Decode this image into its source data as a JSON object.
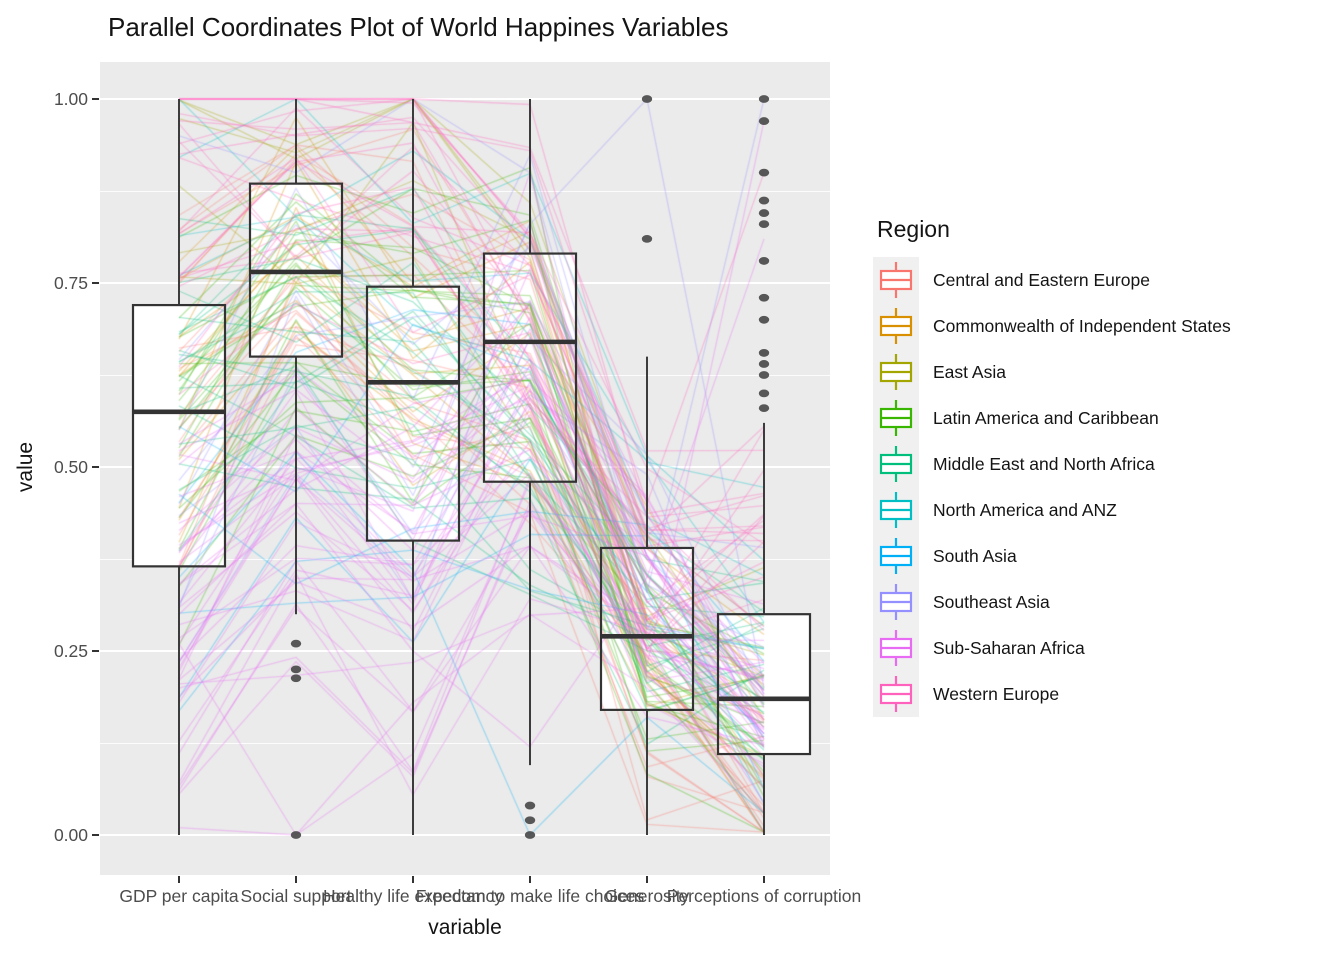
{
  "title": "Parallel Coordinates Plot of World Happines Variables",
  "axes": {
    "x_title": "variable",
    "y_title": "value"
  },
  "legend": {
    "title": "Region"
  },
  "chart_data": {
    "type": "parallel-coordinates-with-boxplots",
    "title": "Parallel Coordinates Plot of World Happines Variables",
    "xlabel": "variable",
    "ylabel": "value",
    "ylim": [
      0,
      1
    ],
    "grid": "on",
    "legend_position": "right",
    "panel_bg": "#EBEBEB",
    "gridline_color": "#FFFFFF",
    "box_color": "#333333",
    "outlier_color": "#474747",
    "line_style": {
      "alpha": 0.33,
      "width": 1.3
    },
    "yticks": [
      {
        "v": 0.0,
        "label": "0.00"
      },
      {
        "v": 0.25,
        "label": "0.25"
      },
      {
        "v": 0.5,
        "label": "0.50"
      },
      {
        "v": 0.75,
        "label": "0.75"
      },
      {
        "v": 1.0,
        "label": "1.00"
      }
    ],
    "yticks_minor": [
      0.125,
      0.375,
      0.625,
      0.875
    ],
    "variables": [
      "GDP per capita",
      "Social support",
      "Healthy life expectancy",
      "Freedom to make life choices",
      "Generosity",
      "Perceptions of corruption"
    ],
    "boxplots": [
      {
        "variable": "GDP per capita",
        "whisker_low": 0.0,
        "q1": 0.365,
        "median": 0.575,
        "q3": 0.72,
        "whisker_high": 1.0,
        "outliers": []
      },
      {
        "variable": "Social support",
        "whisker_low": 0.3,
        "q1": 0.65,
        "median": 0.765,
        "q3": 0.885,
        "whisker_high": 1.0,
        "outliers": [
          0.26,
          0.225,
          0.213,
          0.0
        ]
      },
      {
        "variable": "Healthy life expectancy",
        "whisker_low": 0.0,
        "q1": 0.4,
        "median": 0.615,
        "q3": 0.745,
        "whisker_high": 1.0,
        "outliers": []
      },
      {
        "variable": "Freedom to make life choices",
        "whisker_low": 0.095,
        "q1": 0.48,
        "median": 0.67,
        "q3": 0.79,
        "whisker_high": 1.0,
        "outliers": [
          0.04,
          0.02,
          0.0
        ]
      },
      {
        "variable": "Generosity",
        "whisker_low": 0.0,
        "q1": 0.17,
        "median": 0.27,
        "q3": 0.39,
        "whisker_high": 0.65,
        "outliers": [
          1.0,
          0.81
        ]
      },
      {
        "variable": "Perceptions of corruption",
        "whisker_low": 0.0,
        "q1": 0.11,
        "median": 0.185,
        "q3": 0.3,
        "whisker_high": 0.56,
        "outliers": [
          1.0,
          0.97,
          0.9,
          0.862,
          0.845,
          0.83,
          0.78,
          0.73,
          0.7,
          0.655,
          0.64,
          0.625,
          0.6,
          0.58
        ]
      }
    ],
    "regions": [
      {
        "name": "Central and Eastern Europe",
        "color": "#F8766D",
        "n_lines": 17,
        "profile": [
          0.62,
          0.8,
          0.7,
          0.62,
          0.2,
          0.08
        ],
        "sample_lines": []
      },
      {
        "name": "Commonwealth of Independent States",
        "color": "#D89000",
        "n_lines": 12,
        "profile": [
          0.55,
          0.78,
          0.62,
          0.6,
          0.26,
          0.13
        ],
        "sample_lines": []
      },
      {
        "name": "East Asia",
        "color": "#A3A500",
        "n_lines": 6,
        "profile": [
          0.74,
          0.78,
          0.82,
          0.6,
          0.25,
          0.22
        ],
        "sample_lines": []
      },
      {
        "name": "Latin America and Caribbean",
        "color": "#39B600",
        "n_lines": 21,
        "profile": [
          0.55,
          0.76,
          0.68,
          0.68,
          0.22,
          0.14
        ],
        "sample_lines": []
      },
      {
        "name": "Middle East and North Africa",
        "color": "#00BF7D",
        "n_lines": 19,
        "profile": [
          0.6,
          0.62,
          0.6,
          0.46,
          0.24,
          0.2
        ],
        "sample_lines": []
      },
      {
        "name": "North America and ANZ",
        "color": "#00BFC4",
        "n_lines": 4,
        "profile": [
          0.86,
          0.88,
          0.84,
          0.82,
          0.48,
          0.4
        ],
        "sample_lines": []
      },
      {
        "name": "South Asia",
        "color": "#00B0F6",
        "n_lines": 7,
        "profile": [
          0.35,
          0.42,
          0.45,
          0.55,
          0.33,
          0.18
        ],
        "sample_lines": [
          [
            0.35,
            0.52,
            0.36,
            0.0,
            0.16,
            0.03
          ]
        ]
      },
      {
        "name": "Southeast Asia",
        "color": "#9590FF",
        "n_lines": 9,
        "profile": [
          0.5,
          0.72,
          0.58,
          0.82,
          0.46,
          0.25
        ],
        "sample_lines": [
          [
            0.45,
            0.74,
            0.5,
            0.83,
            1.0,
            0.2
          ],
          [
            0.95,
            0.9,
            1.0,
            0.9,
            0.33,
            1.0
          ]
        ]
      },
      {
        "name": "Sub-Saharan Africa",
        "color": "#E76BF3",
        "n_lines": 39,
        "profile": [
          0.25,
          0.43,
          0.3,
          0.5,
          0.3,
          0.14
        ],
        "sample_lines": [
          [
            0.01,
            0.0,
            0.18,
            0.3,
            0.2,
            0.03
          ],
          [
            0.26,
            0.0,
            0.11,
            0.48,
            0.28,
            0.08
          ],
          [
            0.26,
            0.5,
            0.44,
            0.9,
            0.23,
            0.97
          ],
          [
            0.3,
            0.45,
            0.25,
            0.12,
            0.35,
            0.81
          ]
        ]
      },
      {
        "name": "Western Europe",
        "color": "#FF62BC",
        "n_lines": 21,
        "profile": [
          0.87,
          0.9,
          0.88,
          0.76,
          0.34,
          0.4
        ],
        "sample_lines": [
          [
            0.98,
            0.95,
            0.96,
            0.93,
            0.45,
            0.9
          ]
        ]
      }
    ]
  }
}
